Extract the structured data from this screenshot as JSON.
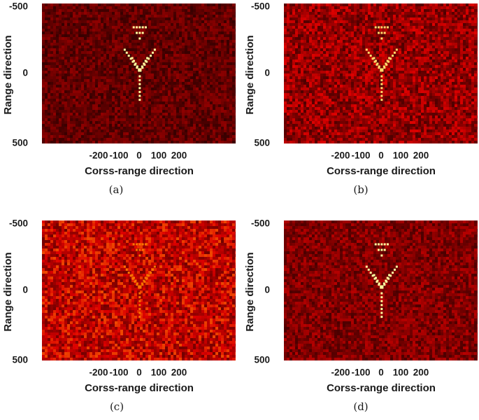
{
  "chart_data": [
    {
      "type": "heatmap",
      "caption": "(a)",
      "xlabel": "Corss-range direction",
      "ylabel": "Range direction",
      "xlim": [
        -260,
        255
      ],
      "ylim": [
        -500,
        500
      ],
      "x_ticks": [
        -200,
        -100,
        0,
        100,
        200
      ],
      "y_ticks": [
        -500,
        0,
        500
      ],
      "x_tick_labels": [
        "-200",
        "-100",
        "0",
        "100",
        "200"
      ],
      "y_tick_labels": [
        "-500",
        "0",
        "500"
      ],
      "colormap": "black-red-yellow",
      "background_level": 0.22,
      "noise_level": 0.25,
      "target_level": 1.0,
      "target": "V-shaped point target array near origin"
    },
    {
      "type": "heatmap",
      "caption": "(b)",
      "xlabel": "Corss-range direction",
      "ylabel": "Range direction",
      "xlim": [
        -260,
        255
      ],
      "ylim": [
        -500,
        500
      ],
      "x_ticks": [
        -200,
        -100,
        0,
        100,
        200
      ],
      "y_ticks": [
        -500,
        0,
        500
      ],
      "x_tick_labels": [
        "-200",
        "-100",
        "0",
        "100",
        "200"
      ],
      "y_tick_labels": [
        "-500",
        "0",
        "500"
      ],
      "colormap": "black-red-yellow",
      "background_level": 0.36,
      "noise_level": 0.4,
      "target_level": 0.95,
      "target": "V-shaped point target array near origin"
    },
    {
      "type": "heatmap",
      "caption": "(c)",
      "xlabel": "Corss-range direction",
      "ylabel": "Range direction",
      "xlim": [
        -260,
        255
      ],
      "ylim": [
        -500,
        500
      ],
      "x_ticks": [
        -200,
        -100,
        0,
        100,
        200
      ],
      "y_ticks": [
        -500,
        0,
        500
      ],
      "x_tick_labels": [
        "-200",
        "-100",
        "0",
        "100",
        "200"
      ],
      "y_tick_labels": [
        "-500",
        "0",
        "500"
      ],
      "colormap": "black-red-yellow",
      "background_level": 0.48,
      "noise_level": 0.45,
      "target_level": 0.8,
      "target": "V-shaped point target array near origin"
    },
    {
      "type": "heatmap",
      "caption": "(d)",
      "xlabel": "Corss-range direction",
      "ylabel": "Range direction",
      "xlim": [
        -260,
        255
      ],
      "ylim": [
        -500,
        500
      ],
      "x_ticks": [
        -200,
        -100,
        0,
        100,
        200
      ],
      "y_ticks": [
        -500,
        0,
        500
      ],
      "x_tick_labels": [
        "-200",
        "-100",
        "0",
        "100",
        "200"
      ],
      "y_tick_labels": [
        "-500",
        "0",
        "500"
      ],
      "colormap": "black-red-yellow",
      "background_level": 0.3,
      "noise_level": 0.3,
      "target_level": 1.0,
      "target": "V-shaped point target array near origin"
    }
  ]
}
